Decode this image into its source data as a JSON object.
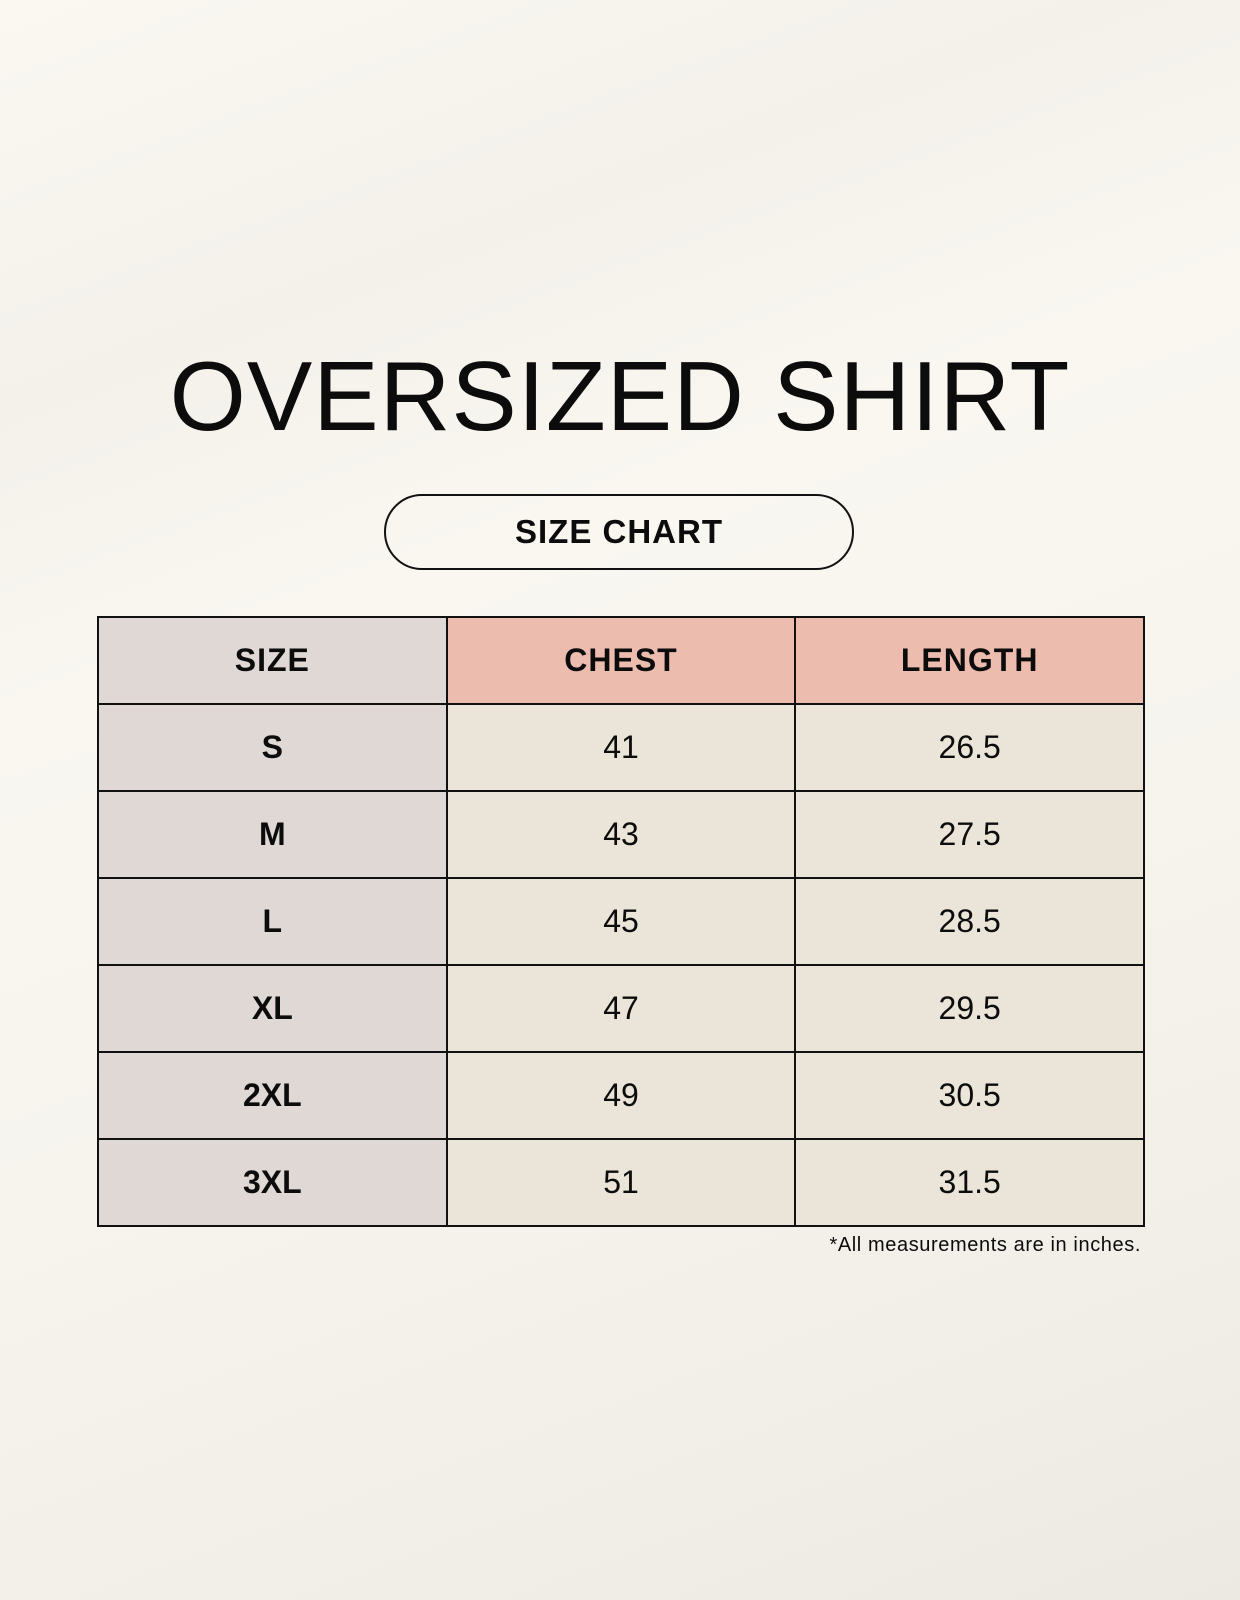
{
  "title": "OVERSIZED SHIRT",
  "subtitle": "SIZE CHART",
  "table": {
    "headers": [
      "SIZE",
      "CHEST",
      "LENGTH"
    ],
    "rows": [
      [
        "S",
        "41",
        "26.5"
      ],
      [
        "M",
        "43",
        "27.5"
      ],
      [
        "L",
        "45",
        "28.5"
      ],
      [
        "XL",
        "47",
        "29.5"
      ],
      [
        "2XL",
        "49",
        "30.5"
      ],
      [
        "3XL",
        "51",
        "31.5"
      ]
    ]
  },
  "footnote": "*All measurements are in inches.",
  "colors": {
    "size_column": "#e0d8d5",
    "measure_header": "#ecbdaf",
    "value_cells": "#ebe4d8"
  }
}
